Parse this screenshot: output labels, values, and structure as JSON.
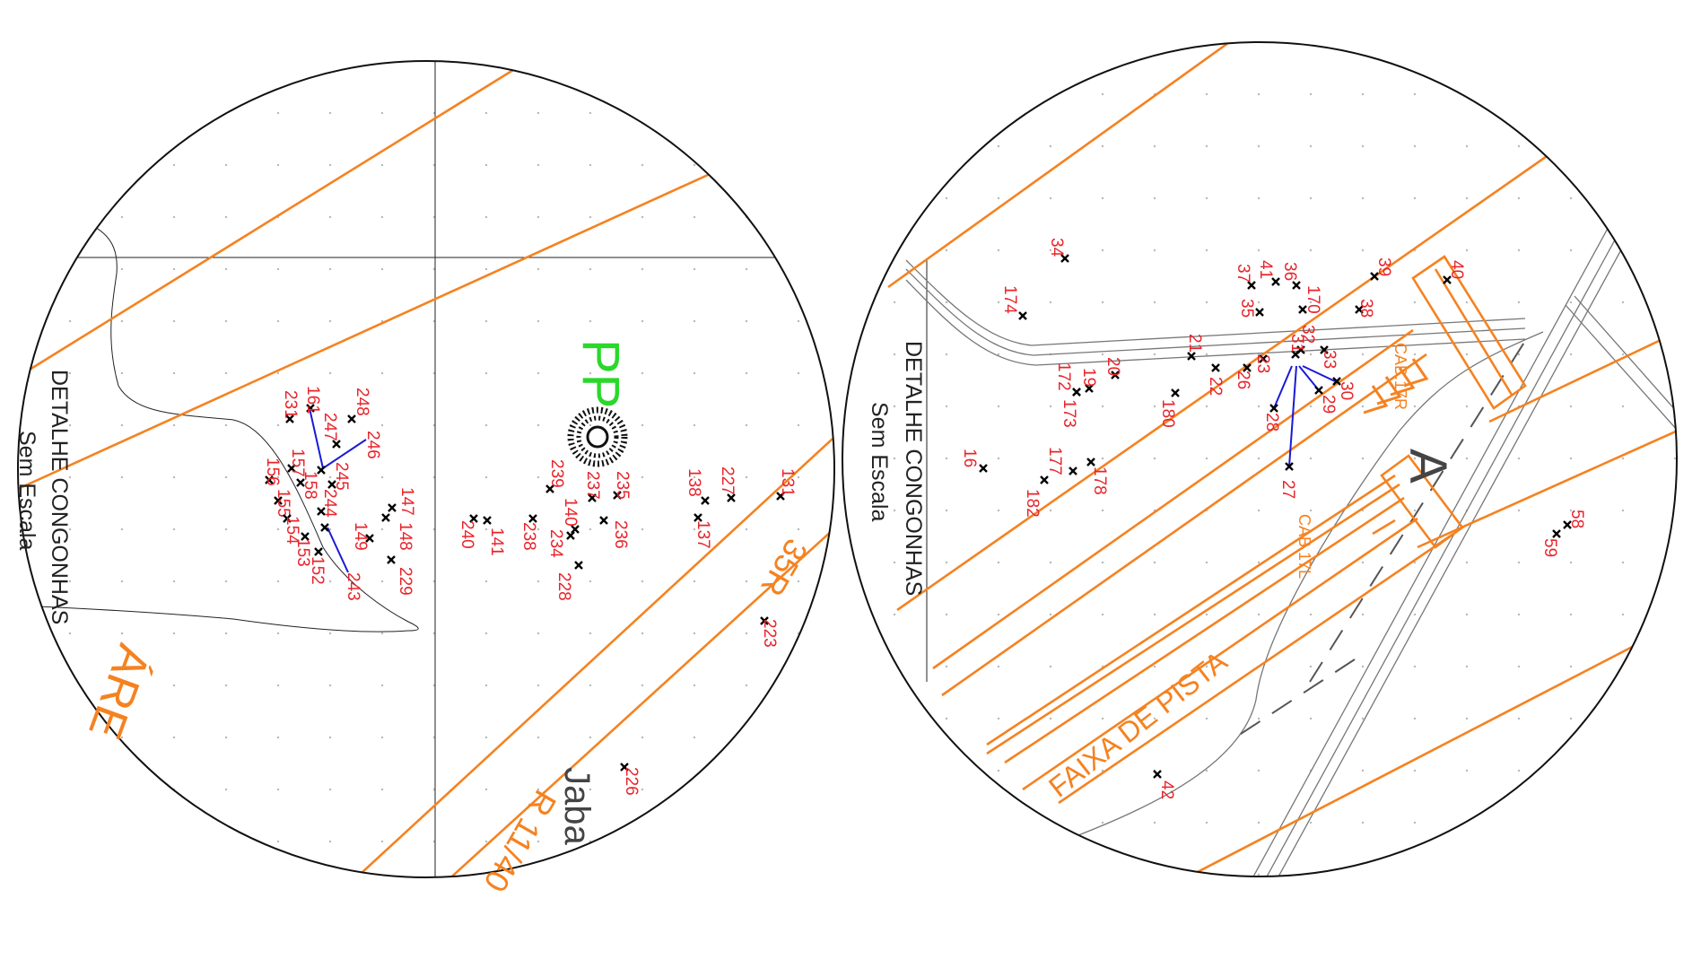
{
  "left_detail": {
    "title": "DETALHE CONGONHAS",
    "subtitle": "Sem Escala",
    "pp_label": "PP",
    "area_label": "ÁRE",
    "runway_label": "R 11/40",
    "runway_label_2": "35R",
    "street_label": "Jaba",
    "points": [
      {
        "id": "248"
      },
      {
        "id": "246"
      },
      {
        "id": "161"
      },
      {
        "id": "231"
      },
      {
        "id": "247"
      },
      {
        "id": "245"
      },
      {
        "id": "244"
      },
      {
        "id": "157"
      },
      {
        "id": "158"
      },
      {
        "id": "156"
      },
      {
        "id": "155"
      },
      {
        "id": "154"
      },
      {
        "id": "153"
      },
      {
        "id": "152"
      },
      {
        "id": "243"
      },
      {
        "id": "149"
      },
      {
        "id": "148"
      },
      {
        "id": "147"
      },
      {
        "id": "229"
      },
      {
        "id": "240"
      },
      {
        "id": "141"
      },
      {
        "id": "238"
      },
      {
        "id": "239"
      },
      {
        "id": "237"
      },
      {
        "id": "235"
      },
      {
        "id": "236"
      },
      {
        "id": "140"
      },
      {
        "id": "234"
      },
      {
        "id": "228"
      },
      {
        "id": "138"
      },
      {
        "id": "137"
      },
      {
        "id": "227"
      },
      {
        "id": "131"
      },
      {
        "id": "223"
      },
      {
        "id": "226"
      }
    ]
  },
  "right_detail": {
    "title": "DETALHE CONGONHAS",
    "subtitle": "Sem Escala",
    "strip_label": "FAIXA DE PISTA",
    "cab_left": "CAB.17L",
    "cab_right": "CAB.17R",
    "section_label": "A",
    "points": [
      {
        "id": "34"
      },
      {
        "id": "174"
      },
      {
        "id": "41"
      },
      {
        "id": "36"
      },
      {
        "id": "37"
      },
      {
        "id": "35"
      },
      {
        "id": "170"
      },
      {
        "id": "39"
      },
      {
        "id": "38"
      },
      {
        "id": "40"
      },
      {
        "id": "21"
      },
      {
        "id": "23"
      },
      {
        "id": "22"
      },
      {
        "id": "26"
      },
      {
        "id": "20"
      },
      {
        "id": "172"
      },
      {
        "id": "19"
      },
      {
        "id": "173"
      },
      {
        "id": "180"
      },
      {
        "id": "32"
      },
      {
        "id": "31"
      },
      {
        "id": "33"
      },
      {
        "id": "30"
      },
      {
        "id": "29"
      },
      {
        "id": "28"
      },
      {
        "id": "27"
      },
      {
        "id": "16"
      },
      {
        "id": "177"
      },
      {
        "id": "178"
      },
      {
        "id": "182"
      },
      {
        "id": "58"
      },
      {
        "id": "59"
      },
      {
        "id": "42"
      }
    ]
  },
  "colors": {
    "boundary": "#f58220",
    "label": "#e8242b",
    "pp": "#2ad82a",
    "link": "#1a1ad6"
  }
}
